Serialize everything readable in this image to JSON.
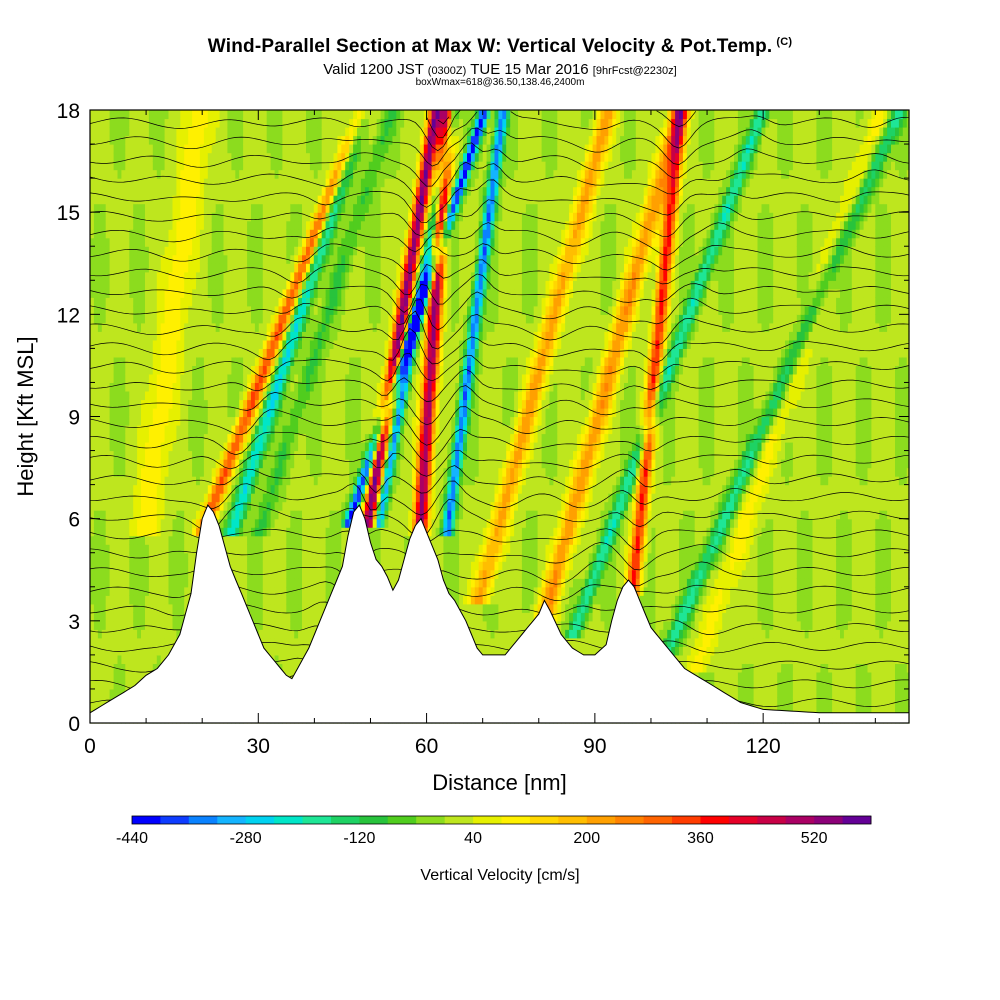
{
  "header": {
    "title": "Wind-Parallel Section at Max W: Vertical Velocity & Pot.Temp.",
    "copyright": "(C)",
    "valid_prefix": "Valid 1200 JST",
    "valid_utc": "(0300Z)",
    "valid_suffix": "TUE 15 Mar 2016",
    "forecast": "[9hrFcst@2230z]",
    "box_info": "boxWmax=618@36.50,138.46,2400m"
  },
  "chart_data": {
    "type": "heatmap",
    "xlabel": "Distance [nm]",
    "ylabel": "Height [Kft MSL]",
    "xlim": [
      0,
      146
    ],
    "ylim": [
      0,
      18
    ],
    "x_ticks": [
      0,
      30,
      60,
      90,
      120
    ],
    "x_tick_labels": [
      "0",
      "30",
      "60",
      "90",
      "120"
    ],
    "y_ticks": [
      0,
      3,
      6,
      9,
      12,
      15,
      18
    ],
    "y_tick_labels": [
      "0",
      "3",
      "6",
      "9",
      "12",
      "15",
      "18"
    ],
    "colorbar": {
      "title": "Vertical Velocity [cm/s]",
      "min": -440,
      "max": 600,
      "step": 40,
      "tick_values": [
        -440,
        -280,
        -120,
        40,
        200,
        360,
        520
      ],
      "tick_labels": [
        "-440",
        "-280",
        "-120",
        "40",
        "200",
        "360",
        "520"
      ],
      "colors": [
        "#0000ff",
        "#0e3cff",
        "#0a82ff",
        "#14b4ff",
        "#00d2f0",
        "#00e6c8",
        "#1ee696",
        "#1ed264",
        "#28c33c",
        "#50cd1e",
        "#8cdc1e",
        "#bee61e",
        "#e6f000",
        "#fff000",
        "#ffd700",
        "#ffbe00",
        "#ffa000",
        "#ff8200",
        "#ff6400",
        "#ff3c00",
        "#ff0000",
        "#e60028",
        "#c80046",
        "#aa0064",
        "#8c0078",
        "#640096"
      ]
    },
    "terrain_kft": [
      [
        0,
        0.3
      ],
      [
        3,
        0.6
      ],
      [
        6,
        0.9
      ],
      [
        8,
        1.1
      ],
      [
        10,
        1.4
      ],
      [
        12,
        1.6
      ],
      [
        14,
        2
      ],
      [
        16,
        2.6
      ],
      [
        18,
        3.8
      ],
      [
        19,
        5
      ],
      [
        20,
        6.0
      ],
      [
        21,
        6.4
      ],
      [
        22,
        6.2
      ],
      [
        23,
        5.8
      ],
      [
        24,
        5.2
      ],
      [
        25,
        4.6
      ],
      [
        26,
        4.2
      ],
      [
        27,
        3.8
      ],
      [
        28,
        3.4
      ],
      [
        29,
        3
      ],
      [
        30,
        2.6
      ],
      [
        31,
        2.2
      ],
      [
        33,
        1.8
      ],
      [
        35,
        1.4
      ],
      [
        36,
        1.3
      ],
      [
        37,
        1.6
      ],
      [
        39,
        2.2
      ],
      [
        41,
        3
      ],
      [
        43,
        3.8
      ],
      [
        45,
        4.6
      ],
      [
        46,
        5.5
      ],
      [
        47,
        6.2
      ],
      [
        48,
        6.4
      ],
      [
        49,
        6
      ],
      [
        50,
        5.3
      ],
      [
        51,
        4.8
      ],
      [
        52,
        4.6
      ],
      [
        53,
        4.3
      ],
      [
        54,
        3.9
      ],
      [
        55,
        4.2
      ],
      [
        56,
        4.8
      ],
      [
        57,
        5.4
      ],
      [
        58,
        5.8
      ],
      [
        59,
        6
      ],
      [
        60,
        5.6
      ],
      [
        61,
        5.2
      ],
      [
        62,
        4.8
      ],
      [
        63,
        4.2
      ],
      [
        64,
        3.8
      ],
      [
        65,
        3.6
      ],
      [
        66,
        3.3
      ],
      [
        67,
        3.0
      ],
      [
        68,
        2.6
      ],
      [
        69,
        2.2
      ],
      [
        70,
        2
      ],
      [
        72,
        2
      ],
      [
        74,
        2
      ],
      [
        76,
        2.4
      ],
      [
        78,
        2.8
      ],
      [
        80,
        3.2
      ],
      [
        81,
        3.6
      ],
      [
        82,
        3.3
      ],
      [
        84,
        2.6
      ],
      [
        86,
        2.2
      ],
      [
        88,
        2
      ],
      [
        90,
        2
      ],
      [
        92,
        2.3
      ],
      [
        93,
        3
      ],
      [
        94,
        3.6
      ],
      [
        95,
        4.0
      ],
      [
        96,
        4.2
      ],
      [
        97,
        4.0
      ],
      [
        98,
        3.6
      ],
      [
        99,
        3.2
      ],
      [
        100,
        2.8
      ],
      [
        102,
        2.4
      ],
      [
        104,
        2
      ],
      [
        106,
        1.6
      ],
      [
        108,
        1.4
      ],
      [
        110,
        1.2
      ],
      [
        112,
        1
      ],
      [
        114,
        0.8
      ],
      [
        116,
        0.6
      ],
      [
        118,
        0.5
      ],
      [
        120,
        0.4
      ],
      [
        130,
        0.3
      ],
      [
        140,
        0.3
      ],
      [
        146,
        0.3
      ]
    ],
    "w_features": [
      {
        "x": 21,
        "tilt": 2.3,
        "width": 1.4,
        "amp": 320,
        "bottom": 6
      },
      {
        "x": 26,
        "tilt": 1.9,
        "width": 1.4,
        "amp": -250,
        "bottom": 6
      },
      {
        "x": 31,
        "tilt": 1.9,
        "width": 1.5,
        "amp": -90,
        "bottom": 6
      },
      {
        "x": 47,
        "tilt": 2.0,
        "width": 1.0,
        "amp": -420,
        "bottom": 6.3
      },
      {
        "x": 50,
        "tilt": 1.0,
        "width": 1.2,
        "amp": 560,
        "bottom": 6.3
      },
      {
        "x": 52,
        "tilt": 1.1,
        "width": 0.9,
        "amp": -330,
        "bottom": 6.3
      },
      {
        "x": 59,
        "tilt": 0.4,
        "width": 1.3,
        "amp": 520,
        "bottom": 6
      },
      {
        "x": 64,
        "tilt": 0.8,
        "width": 1.0,
        "amp": -360,
        "bottom": 6
      },
      {
        "x": 70,
        "tilt": 1.6,
        "width": 1.8,
        "amp": 210,
        "bottom": 4
      },
      {
        "x": 81,
        "tilt": 1.6,
        "width": 1.8,
        "amp": 230,
        "bottom": 3
      },
      {
        "x": 87,
        "tilt": 2.2,
        "width": 1.3,
        "amp": -200,
        "bottom": 3
      },
      {
        "x": 97,
        "tilt": 0.6,
        "width": 1.2,
        "amp": 360,
        "bottom": 4.2
      },
      {
        "x": 104,
        "tilt": 2.6,
        "width": 1.5,
        "amp": -180,
        "bottom": 2.5
      },
      {
        "x": 109,
        "tilt": 2.0,
        "width": 2.0,
        "amp": 90,
        "bottom": 2
      },
      {
        "x": 10,
        "tilt": 0.8,
        "width": 2.5,
        "amp": 110,
        "bottom": 6
      }
    ]
  }
}
